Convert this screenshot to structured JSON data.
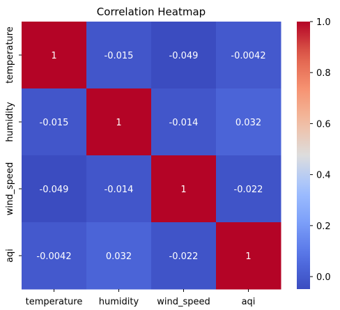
{
  "chart_data": {
    "type": "heatmap",
    "title": "Correlation Heatmap",
    "xlabel": "",
    "ylabel": "",
    "x_categories": [
      "temperature",
      "humidity",
      "wind_speed",
      "aqi"
    ],
    "y_categories": [
      "temperature",
      "humidity",
      "wind_speed",
      "aqi"
    ],
    "values": [
      [
        1,
        -0.015,
        -0.049,
        -0.0042
      ],
      [
        -0.015,
        1,
        -0.014,
        0.032
      ],
      [
        -0.049,
        -0.014,
        1,
        -0.022
      ],
      [
        -0.0042,
        0.032,
        -0.022,
        1
      ]
    ],
    "cell_labels": [
      [
        "1",
        "-0.015",
        "-0.049",
        "-0.0042"
      ],
      [
        "-0.015",
        "1",
        "-0.014",
        "0.032"
      ],
      [
        "-0.049",
        "-0.014",
        "1",
        "-0.022"
      ],
      [
        "-0.0042",
        "0.032",
        "-0.022",
        "1"
      ]
    ],
    "colormap": "coolwarm",
    "colorbar": {
      "range": [
        -0.049,
        1
      ],
      "ticks": [
        0.0,
        0.2,
        0.4,
        0.6,
        0.8,
        1.0
      ],
      "tick_labels": [
        "0.0",
        "0.2",
        "0.4",
        "0.6",
        "0.8",
        "1.0"
      ]
    },
    "grid": false
  }
}
